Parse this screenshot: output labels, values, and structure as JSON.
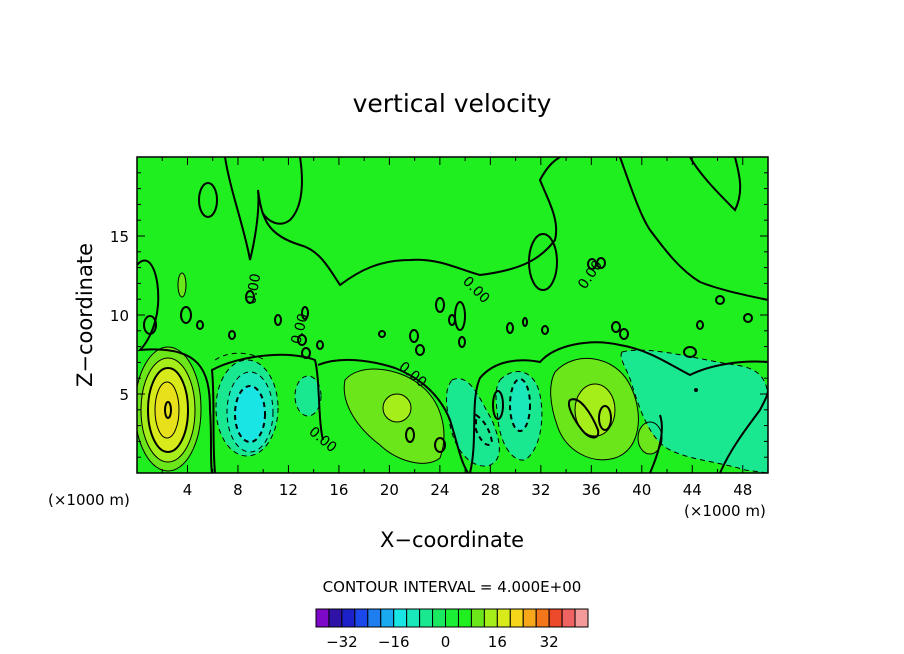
{
  "chart_data": {
    "type": "heatmap",
    "title": "vertical velocity",
    "xlabel": "X−coordinate",
    "ylabel": "Z−coordinate",
    "x_unit_label": "(×1000 m)",
    "x_unit_label_right": "(×1000 m)",
    "xlim": [
      0,
      50
    ],
    "ylim": [
      0,
      20
    ],
    "x_ticks": [
      4,
      8,
      12,
      16,
      20,
      24,
      28,
      32,
      36,
      40,
      44,
      48
    ],
    "y_ticks": [
      5,
      10,
      15
    ],
    "contour_interval_text": "CONTOUR INTERVAL = 4.000E+00",
    "contour_labels": [
      "0.00",
      "0.00",
      "0.00",
      "0.00",
      "0.00",
      "0.00"
    ],
    "background_color": "#1fef1f",
    "colorbar": {
      "colors": [
        "#7e08c8",
        "#2f12a6",
        "#1b20c9",
        "#1a48ea",
        "#1e7ef0",
        "#1aaaf0",
        "#1ae5e5",
        "#1ae8bb",
        "#1ae890",
        "#1ae860",
        "#1aef35",
        "#1fef1f",
        "#6be61a",
        "#a6ee1a",
        "#d8ea1a",
        "#f5d61a",
        "#f6a81a",
        "#f3771a",
        "#ec4a2a",
        "#ef6363",
        "#f59a9a"
      ],
      "tick_values": [
        -32,
        -16,
        0,
        16,
        32
      ],
      "range": [
        -40,
        44
      ]
    },
    "features": [
      {
        "cx": 2.5,
        "cz": 4.0,
        "value": 20,
        "kind": "updraft"
      },
      {
        "cx": 8.8,
        "cz": 3.8,
        "value": -16,
        "kind": "downdraft"
      },
      {
        "cx": 13.4,
        "cz": 5.0,
        "value": -4,
        "kind": "downdraft"
      },
      {
        "cx": 20.0,
        "cz": 4.0,
        "value": 8,
        "kind": "updraft"
      },
      {
        "cx": 28.5,
        "cz": 3.6,
        "value": -12,
        "kind": "downdraft"
      },
      {
        "cx": 36.5,
        "cz": 4.0,
        "value": 12,
        "kind": "updraft"
      },
      {
        "cx": 44.0,
        "cz": 3.5,
        "value": -4,
        "kind": "downdraft"
      }
    ]
  }
}
